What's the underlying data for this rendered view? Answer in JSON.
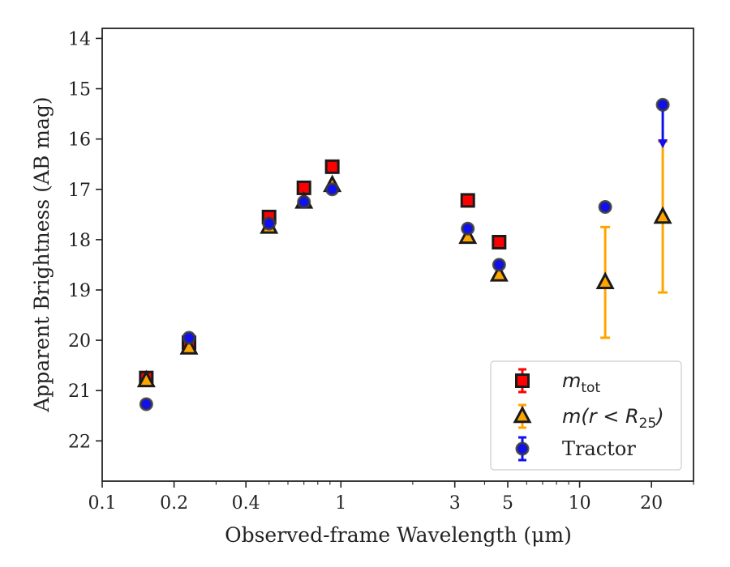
{
  "chart_data": {
    "type": "scatter",
    "title": "",
    "xlabel": "Observed-frame Wavelength (μm)",
    "ylabel": "Apparent Brightness (AB mag)",
    "xscale": "log",
    "xlim": [
      0.1,
      30
    ],
    "ylim": [
      22.8,
      13.8
    ],
    "y_inverted": true,
    "grid": false,
    "legend_position": "lower-right",
    "x_ticks": [
      {
        "value": 0.1,
        "label": "0.1"
      },
      {
        "value": 0.2,
        "label": "0.2"
      },
      {
        "value": 0.4,
        "label": "0.4"
      },
      {
        "value": 1,
        "label": "1"
      },
      {
        "value": 3,
        "label": "3"
      },
      {
        "value": 5,
        "label": "5"
      },
      {
        "value": 10,
        "label": "10"
      },
      {
        "value": 20,
        "label": "20"
      }
    ],
    "y_ticks": [
      {
        "value": 14,
        "label": "14"
      },
      {
        "value": 15,
        "label": "15"
      },
      {
        "value": 16,
        "label": "16"
      },
      {
        "value": 17,
        "label": "17"
      },
      {
        "value": 18,
        "label": "18"
      },
      {
        "value": 19,
        "label": "19"
      },
      {
        "value": 20,
        "label": "20"
      },
      {
        "value": 21,
        "label": "21"
      },
      {
        "value": 22,
        "label": "22"
      }
    ],
    "series": [
      {
        "name_main": "m",
        "name_sub": "tot",
        "marker": "square",
        "color": "#ff0000",
        "edge_color": "#1a1a1a",
        "points": [
          {
            "x": 0.153,
            "y": 20.75
          },
          {
            "x": 0.231,
            "y": 20.05
          },
          {
            "x": 0.5,
            "y": 17.55
          },
          {
            "x": 0.7,
            "y": 16.97
          },
          {
            "x": 0.92,
            "y": 16.55
          },
          {
            "x": 3.4,
            "y": 17.22
          },
          {
            "x": 4.6,
            "y": 18.05
          }
        ]
      },
      {
        "name_main": "m(r < R",
        "name_sub": "25",
        "name_end": ")",
        "marker": "triangle",
        "color": "#ffa500",
        "edge_color": "#1a1a1a",
        "points": [
          {
            "x": 0.153,
            "y": 20.8,
            "yerr_low": 0,
            "yerr_high": 0
          },
          {
            "x": 0.231,
            "y": 20.15,
            "yerr_low": 0,
            "yerr_high": 0
          },
          {
            "x": 0.5,
            "y": 17.75,
            "yerr_low": 0,
            "yerr_high": 0
          },
          {
            "x": 0.7,
            "y": 17.25,
            "yerr_low": 0,
            "yerr_high": 0
          },
          {
            "x": 0.92,
            "y": 16.92,
            "yerr_low": 0,
            "yerr_high": 0
          },
          {
            "x": 3.4,
            "y": 17.95,
            "yerr_low": 0,
            "yerr_high": 0
          },
          {
            "x": 4.6,
            "y": 18.7,
            "yerr_low": 0,
            "yerr_high": 0
          },
          {
            "x": 12.8,
            "y": 18.85,
            "yerr_low": 1.1,
            "yerr_high": 1.1
          },
          {
            "x": 22.3,
            "y": 17.55,
            "yerr_low": 1.5,
            "yerr_high": 1.5
          }
        ]
      },
      {
        "name_main": "Tractor",
        "marker": "circle",
        "color": "#1010ee",
        "edge_color": "#3a3a3a",
        "points": [
          {
            "x": 0.153,
            "y": 21.27,
            "yerr_low": 0,
            "yerr_high": 0
          },
          {
            "x": 0.231,
            "y": 19.95,
            "yerr_low": 0,
            "yerr_high": 0
          },
          {
            "x": 0.5,
            "y": 17.68,
            "yerr_low": 0,
            "yerr_high": 0
          },
          {
            "x": 0.7,
            "y": 17.25,
            "yerr_low": 0,
            "yerr_high": 0
          },
          {
            "x": 0.92,
            "y": 17.0,
            "yerr_low": 0,
            "yerr_high": 0
          },
          {
            "x": 3.4,
            "y": 17.78,
            "yerr_low": 0,
            "yerr_high": 0
          },
          {
            "x": 4.6,
            "y": 18.5,
            "yerr_low": 0,
            "yerr_high": 0
          },
          {
            "x": 12.8,
            "y": 17.35,
            "yerr_low": 0,
            "yerr_high": 0
          },
          {
            "x": 22.3,
            "y": 15.32,
            "yerr_low": 0,
            "yerr_high": 0,
            "upper_limit_to": 16.15
          }
        ]
      }
    ]
  }
}
